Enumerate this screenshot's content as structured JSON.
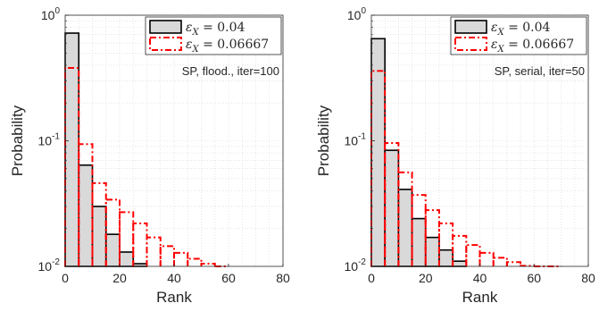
{
  "chart_data": [
    {
      "type": "bar",
      "subtype": "stepped-histogram",
      "xlabel": "Rank",
      "ylabel": "Probability",
      "xlim": [
        0,
        80
      ],
      "ylim": [
        0.01,
        1
      ],
      "yscale": "log",
      "xticks": [
        "0",
        "20",
        "40",
        "60",
        "80"
      ],
      "yticks": [
        {
          "base": "10",
          "exp": "0"
        },
        {
          "base": "10",
          "exp": "-1"
        },
        {
          "base": "10",
          "exp": "-2"
        }
      ],
      "grid": true,
      "legend_position": "top-right",
      "annotation": "SP, flood., iter=100",
      "bin_width": 5,
      "series": [
        {
          "label_symbol": "ε",
          "label_sub": "X",
          "label_value": " = 0.04",
          "style": "solid-filled",
          "color": "#000000",
          "fill": "#d9d9d9",
          "x": [
            0,
            5,
            10,
            15,
            20,
            25,
            30
          ],
          "values": [
            0.72,
            0.064,
            0.03,
            0.018,
            0.013,
            0.0105,
            0.0085
          ]
        },
        {
          "label_symbol": "ε",
          "label_sub": "X",
          "label_value": " = 0.06667",
          "style": "dash-dot",
          "color": "#ff0000",
          "x": [
            0,
            5,
            10,
            15,
            20,
            25,
            30,
            35,
            40,
            45,
            50,
            55
          ],
          "values": [
            0.38,
            0.094,
            0.046,
            0.034,
            0.027,
            0.022,
            0.017,
            0.0145,
            0.0128,
            0.0115,
            0.0105,
            0.0098
          ]
        }
      ]
    },
    {
      "type": "bar",
      "subtype": "stepped-histogram",
      "xlabel": "Rank",
      "ylabel": "Probability",
      "xlim": [
        0,
        80
      ],
      "ylim": [
        0.01,
        1
      ],
      "yscale": "log",
      "xticks": [
        "0",
        "20",
        "40",
        "60",
        "80"
      ],
      "yticks": [
        {
          "base": "10",
          "exp": "0"
        },
        {
          "base": "10",
          "exp": "-1"
        },
        {
          "base": "10",
          "exp": "-2"
        }
      ],
      "grid": true,
      "legend_position": "top-right",
      "annotation": "SP, serial, iter=50",
      "bin_width": 5,
      "series": [
        {
          "label_symbol": "ε",
          "label_sub": "X",
          "label_value": " = 0.04",
          "style": "solid-filled",
          "color": "#000000",
          "fill": "#d9d9d9",
          "x": [
            0,
            5,
            10,
            15,
            20,
            25,
            30,
            35
          ],
          "values": [
            0.65,
            0.084,
            0.041,
            0.024,
            0.017,
            0.0135,
            0.011,
            0.0088
          ]
        },
        {
          "label_symbol": "ε",
          "label_sub": "X",
          "label_value": " = 0.06667",
          "style": "dash-dot",
          "color": "#ff0000",
          "x": [
            0,
            5,
            10,
            15,
            20,
            25,
            30,
            35,
            40,
            45,
            50,
            55,
            60,
            65
          ],
          "values": [
            0.36,
            0.096,
            0.056,
            0.037,
            0.028,
            0.022,
            0.0175,
            0.0148,
            0.0128,
            0.0117,
            0.0108,
            0.0101,
            0.0098,
            0.0092
          ]
        }
      ]
    }
  ]
}
